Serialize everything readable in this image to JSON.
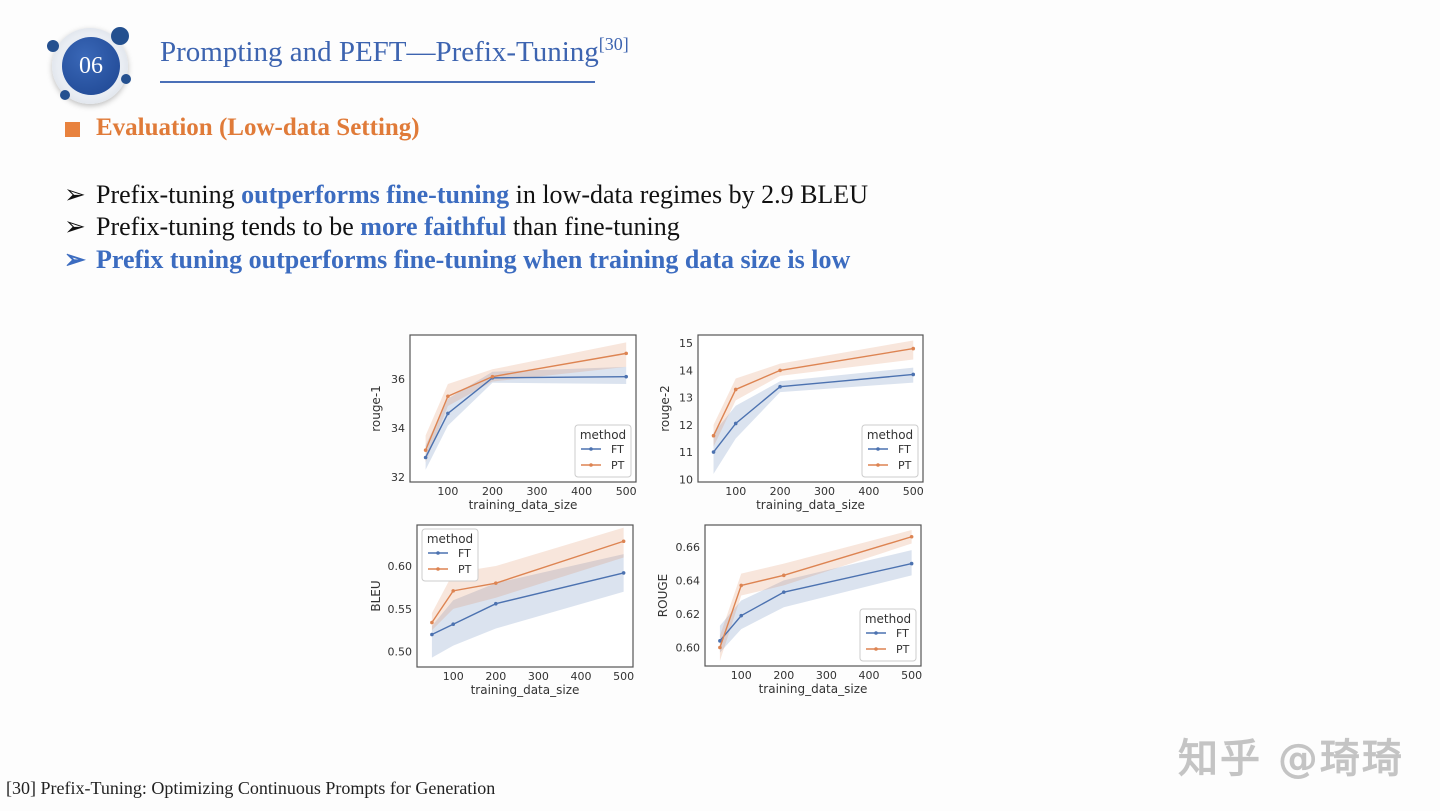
{
  "header": {
    "section_number": "06",
    "title": "Prompting and PEFT—Prefix-Tuning",
    "title_ref": "[30]",
    "accent_color": "#3d64b0"
  },
  "section": {
    "title": "Evaluation (Low-data Setting)",
    "color": "#e07b39"
  },
  "bullets": [
    {
      "pre": "Prefix-tuning ",
      "highlight": "outperforms fine-tuning",
      "post": " in low-data regimes by 2.9 BLEU"
    },
    {
      "pre": "Prefix-tuning tends to be ",
      "highlight": "more faithful",
      "post": " than fine-tuning"
    },
    {
      "text": "Prefix tuning outperforms fine-tuning when training data size is low"
    }
  ],
  "bullet_icon": "arrow-bullet-icon",
  "footer": "[30] Prefix-Tuning: Optimizing Continuous Prompts for Generation",
  "watermark": "知乎 @琦琦",
  "chart_data": [
    {
      "type": "line",
      "xlabel": "training_data_size",
      "ylabel": "rouge-1",
      "x": [
        50,
        100,
        200,
        500
      ],
      "xticks": [
        100,
        200,
        300,
        400,
        500
      ],
      "yticks": [
        32,
        34,
        36
      ],
      "xlim": [
        15,
        522
      ],
      "ylim": [
        31.8,
        37.8
      ],
      "legend": {
        "title": "method",
        "placement": "bottom-right"
      },
      "series": [
        {
          "name": "FT",
          "color": "#4c72b0",
          "values": [
            32.8,
            34.6,
            36.05,
            36.1
          ],
          "ci_low": [
            32.3,
            34.1,
            35.85,
            35.8
          ],
          "ci_high": [
            33.3,
            35.2,
            36.3,
            36.5
          ]
        },
        {
          "name": "PT",
          "color": "#dd8452",
          "values": [
            33.1,
            35.3,
            36.1,
            37.05
          ],
          "ci_low": [
            32.6,
            34.9,
            35.9,
            36.5
          ],
          "ci_high": [
            33.7,
            35.8,
            36.4,
            37.5
          ]
        }
      ]
    },
    {
      "type": "line",
      "xlabel": "training_data_size",
      "ylabel": "rouge-2",
      "x": [
        50,
        100,
        200,
        500
      ],
      "xticks": [
        100,
        200,
        300,
        400,
        500
      ],
      "yticks": [
        10,
        11,
        12,
        13,
        14,
        15
      ],
      "xlim": [
        15,
        522
      ],
      "ylim": [
        9.9,
        15.3
      ],
      "legend": {
        "title": "method",
        "placement": "bottom-right"
      },
      "series": [
        {
          "name": "FT",
          "color": "#4c72b0",
          "values": [
            11.0,
            12.05,
            13.4,
            13.85
          ],
          "ci_low": [
            10.2,
            11.5,
            13.2,
            13.55
          ],
          "ci_high": [
            11.7,
            12.7,
            13.6,
            14.1
          ]
        },
        {
          "name": "PT",
          "color": "#dd8452",
          "values": [
            11.6,
            13.3,
            14.0,
            14.8
          ],
          "ci_low": [
            11.2,
            12.9,
            13.8,
            14.4
          ],
          "ci_high": [
            12.0,
            13.7,
            14.25,
            15.1
          ]
        }
      ]
    },
    {
      "type": "line",
      "xlabel": "training_data_size",
      "ylabel": "BLEU",
      "x": [
        50,
        100,
        200,
        500
      ],
      "xticks": [
        100,
        200,
        300,
        400,
        500
      ],
      "yticks": [
        0.5,
        0.55,
        0.6
      ],
      "xlim": [
        15,
        522
      ],
      "ylim": [
        0.482,
        0.648
      ],
      "legend": {
        "title": "method",
        "placement": "top-left"
      },
      "series": [
        {
          "name": "FT",
          "color": "#4c72b0",
          "values": [
            0.52,
            0.532,
            0.556,
            0.592
          ],
          "ci_low": [
            0.493,
            0.507,
            0.527,
            0.57
          ],
          "ci_high": [
            0.53,
            0.56,
            0.58,
            0.614
          ]
        },
        {
          "name": "PT",
          "color": "#dd8452",
          "values": [
            0.534,
            0.571,
            0.58,
            0.629
          ],
          "ci_low": [
            0.525,
            0.55,
            0.563,
            0.61
          ],
          "ci_high": [
            0.545,
            0.592,
            0.6,
            0.645
          ]
        }
      ]
    },
    {
      "type": "line",
      "xlabel": "training_data_size",
      "ylabel": "ROUGE",
      "x": [
        50,
        100,
        200,
        500
      ],
      "xticks": [
        100,
        200,
        300,
        400,
        500
      ],
      "yticks": [
        0.6,
        0.62,
        0.64,
        0.66
      ],
      "xlim": [
        15,
        522
      ],
      "ylim": [
        0.589,
        0.673
      ],
      "legend": {
        "title": "method",
        "placement": "bottom-right"
      },
      "series": [
        {
          "name": "FT",
          "color": "#4c72b0",
          "values": [
            0.604,
            0.619,
            0.633,
            0.65
          ],
          "ci_low": [
            0.597,
            0.611,
            0.624,
            0.643
          ],
          "ci_high": [
            0.613,
            0.628,
            0.64,
            0.658
          ]
        },
        {
          "name": "PT",
          "color": "#dd8452",
          "values": [
            0.6,
            0.637,
            0.643,
            0.666
          ],
          "ci_low": [
            0.592,
            0.631,
            0.637,
            0.662
          ],
          "ci_high": [
            0.607,
            0.644,
            0.65,
            0.67
          ]
        }
      ]
    }
  ]
}
